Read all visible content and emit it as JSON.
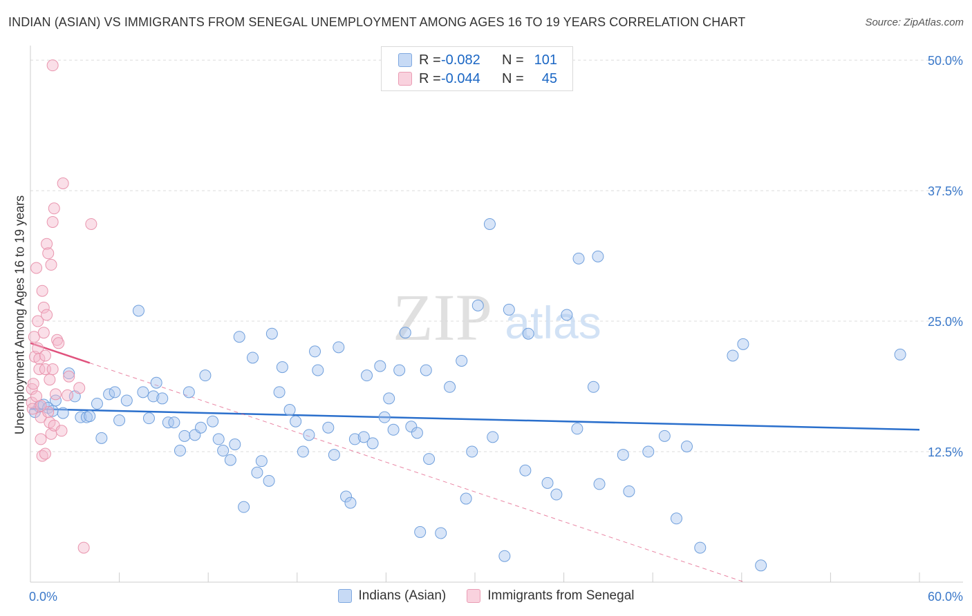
{
  "title": "INDIAN (ASIAN) VS IMMIGRANTS FROM SENEGAL UNEMPLOYMENT AMONG AGES 16 TO 19 YEARS CORRELATION CHART",
  "source": "Source: ZipAtlas.com",
  "watermark": {
    "zip": "ZIP",
    "atlas": "atlas"
  },
  "legend": {
    "rows": [
      {
        "r_label": "R =",
        "r_value": "-0.082",
        "n_label": "N =",
        "n_value": "101",
        "color": "#a9c6ef"
      },
      {
        "r_label": "R =",
        "r_value": "-0.044",
        "n_label": "N =",
        "n_value": "45",
        "color": "#f5b8cb"
      }
    ]
  },
  "bottom_legend": [
    {
      "label": "Indians (Asian)",
      "color": "#a9c6ef"
    },
    {
      "label": "Immigrants from Senegal",
      "color": "#f5b8cb"
    }
  ],
  "chart_data": {
    "type": "scatter",
    "title": "INDIAN (ASIAN) VS IMMIGRANTS FROM SENEGAL UNEMPLOYMENT AMONG AGES 16 TO 19 YEARS CORRELATION CHART",
    "xlabel": "",
    "ylabel": "Unemployment Among Ages 16 to 19 years",
    "xlim": [
      0,
      60
    ],
    "ylim": [
      0,
      51
    ],
    "x_tick_labels": [
      {
        "value": 0,
        "label": "0.0%"
      },
      {
        "value": 60,
        "label": "60.0%"
      }
    ],
    "y_tick_labels": [
      {
        "value": 12.5,
        "label": "12.5%"
      },
      {
        "value": 25,
        "label": "25.0%"
      },
      {
        "value": 37.5,
        "label": "37.5%"
      },
      {
        "value": 50,
        "label": "50.0%"
      }
    ],
    "grid": true,
    "legend_position": "top-center",
    "series": [
      {
        "name": "Indians (Asian)",
        "color": "#a9c6ef",
        "stroke": "#6f9fdc",
        "trend": {
          "x": [
            0,
            60
          ],
          "y": [
            16.6,
            14.6
          ],
          "color": "#2a6fcc"
        },
        "points": [
          [
            0.3,
            16.3
          ],
          [
            0.6,
            16.8
          ],
          [
            0.9,
            17.0
          ],
          [
            1.2,
            16.7
          ],
          [
            1.5,
            16.4
          ],
          [
            1.7,
            17.4
          ],
          [
            2.2,
            16.2
          ],
          [
            2.6,
            20.0
          ],
          [
            3.0,
            17.8
          ],
          [
            3.4,
            15.8
          ],
          [
            3.8,
            15.8
          ],
          [
            4.0,
            15.9
          ],
          [
            4.5,
            17.1
          ],
          [
            4.8,
            13.8
          ],
          [
            5.3,
            18.0
          ],
          [
            5.7,
            18.2
          ],
          [
            6.0,
            15.5
          ],
          [
            6.5,
            17.4
          ],
          [
            7.3,
            26.0
          ],
          [
            7.6,
            18.2
          ],
          [
            8.0,
            15.7
          ],
          [
            8.3,
            17.8
          ],
          [
            8.5,
            19.1
          ],
          [
            8.9,
            17.6
          ],
          [
            9.3,
            15.3
          ],
          [
            9.7,
            15.3
          ],
          [
            10.1,
            12.6
          ],
          [
            10.4,
            14.0
          ],
          [
            10.7,
            18.2
          ],
          [
            11.1,
            14.1
          ],
          [
            11.5,
            14.8
          ],
          [
            11.8,
            19.8
          ],
          [
            12.3,
            15.4
          ],
          [
            12.7,
            13.7
          ],
          [
            13.0,
            12.6
          ],
          [
            13.5,
            11.7
          ],
          [
            13.8,
            13.2
          ],
          [
            14.1,
            23.5
          ],
          [
            14.4,
            7.2
          ],
          [
            15.0,
            21.5
          ],
          [
            15.3,
            10.5
          ],
          [
            15.6,
            11.6
          ],
          [
            16.1,
            9.7
          ],
          [
            16.3,
            23.8
          ],
          [
            16.8,
            18.2
          ],
          [
            17.0,
            20.6
          ],
          [
            17.5,
            16.5
          ],
          [
            17.9,
            15.4
          ],
          [
            18.4,
            12.5
          ],
          [
            18.8,
            14.1
          ],
          [
            19.2,
            22.1
          ],
          [
            19.4,
            20.3
          ],
          [
            20.1,
            14.8
          ],
          [
            20.5,
            12.2
          ],
          [
            20.8,
            22.5
          ],
          [
            21.3,
            8.2
          ],
          [
            21.6,
            7.6
          ],
          [
            21.9,
            13.7
          ],
          [
            22.5,
            13.9
          ],
          [
            22.7,
            19.8
          ],
          [
            23.1,
            13.3
          ],
          [
            23.6,
            20.7
          ],
          [
            23.9,
            15.8
          ],
          [
            24.2,
            17.6
          ],
          [
            24.5,
            14.6
          ],
          [
            24.9,
            20.3
          ],
          [
            25.3,
            23.9
          ],
          [
            25.7,
            14.9
          ],
          [
            26.1,
            14.3
          ],
          [
            26.3,
            4.8
          ],
          [
            26.7,
            20.3
          ],
          [
            26.9,
            11.8
          ],
          [
            27.7,
            4.7
          ],
          [
            28.3,
            18.7
          ],
          [
            29.1,
            21.2
          ],
          [
            29.4,
            8.0
          ],
          [
            29.8,
            12.5
          ],
          [
            30.2,
            26.5
          ],
          [
            31.0,
            34.3
          ],
          [
            31.2,
            13.9
          ],
          [
            32.0,
            2.5
          ],
          [
            32.3,
            26.1
          ],
          [
            33.4,
            10.7
          ],
          [
            33.6,
            23.8
          ],
          [
            34.9,
            9.5
          ],
          [
            35.5,
            8.4
          ],
          [
            36.2,
            25.6
          ],
          [
            36.9,
            14.7
          ],
          [
            37.0,
            31.0
          ],
          [
            38.0,
            18.7
          ],
          [
            38.3,
            31.2
          ],
          [
            38.4,
            9.4
          ],
          [
            40.0,
            12.2
          ],
          [
            40.4,
            8.7
          ],
          [
            41.7,
            12.5
          ],
          [
            42.8,
            14.0
          ],
          [
            43.6,
            6.1
          ],
          [
            44.3,
            13.0
          ],
          [
            45.2,
            3.3
          ],
          [
            47.4,
            21.7
          ],
          [
            48.1,
            22.8
          ],
          [
            49.3,
            1.6
          ],
          [
            58.7,
            21.8
          ]
        ]
      },
      {
        "name": "Immigrants from Senegal",
        "color": "#f5b8cb",
        "stroke": "#e995ae",
        "trend": {
          "x": [
            0,
            4
          ],
          "y": [
            22.9,
            21.0
          ],
          "color": "#e0527d",
          "extended_to": [
            48.2,
            0
          ]
        },
        "points": [
          [
            0.1,
            17.2
          ],
          [
            0.1,
            18.5
          ],
          [
            0.15,
            16.6
          ],
          [
            0.2,
            19.0
          ],
          [
            0.25,
            23.5
          ],
          [
            0.3,
            21.6
          ],
          [
            0.4,
            30.1
          ],
          [
            0.5,
            25.0
          ],
          [
            0.5,
            22.4
          ],
          [
            0.6,
            21.4
          ],
          [
            0.6,
            20.4
          ],
          [
            0.7,
            15.8
          ],
          [
            0.7,
            13.7
          ],
          [
            0.8,
            27.9
          ],
          [
            0.8,
            12.1
          ],
          [
            0.9,
            26.3
          ],
          [
            0.9,
            23.9
          ],
          [
            1.0,
            21.7
          ],
          [
            1.0,
            20.4
          ],
          [
            1.0,
            12.3
          ],
          [
            1.1,
            32.4
          ],
          [
            1.1,
            25.6
          ],
          [
            1.2,
            31.5
          ],
          [
            1.2,
            16.3
          ],
          [
            1.3,
            15.3
          ],
          [
            1.3,
            19.4
          ],
          [
            1.4,
            30.4
          ],
          [
            1.4,
            14.2
          ],
          [
            1.5,
            49.5
          ],
          [
            1.5,
            34.5
          ],
          [
            1.5,
            20.4
          ],
          [
            1.6,
            35.8
          ],
          [
            1.6,
            15.0
          ],
          [
            1.7,
            18.0
          ],
          [
            1.8,
            23.2
          ],
          [
            1.9,
            22.9
          ],
          [
            2.1,
            14.5
          ],
          [
            2.2,
            38.2
          ],
          [
            2.5,
            17.9
          ],
          [
            2.6,
            19.7
          ],
          [
            3.3,
            18.6
          ],
          [
            4.1,
            34.3
          ],
          [
            3.6,
            3.3
          ],
          [
            0.4,
            17.8
          ],
          [
            0.7,
            16.9
          ]
        ]
      }
    ]
  }
}
